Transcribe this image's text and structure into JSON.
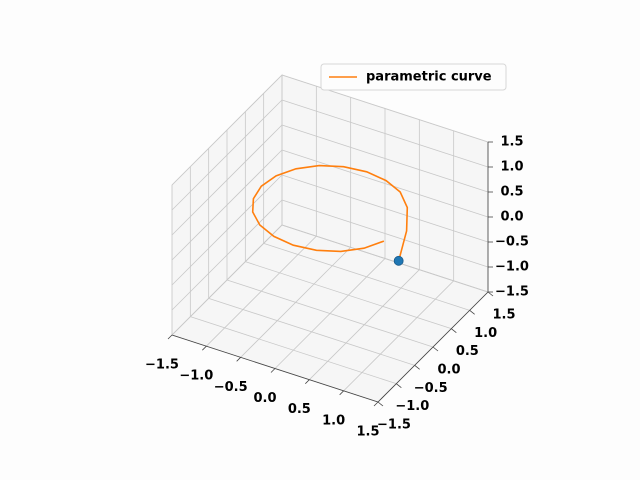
{
  "chart_data": {
    "type": "line3d",
    "series": [
      {
        "name": "parametric curve",
        "color": "#ff7f0e",
        "x": [
          1,
          0.95,
          0.81,
          0.59,
          0.31,
          0,
          -0.31,
          -0.59,
          -0.81,
          -0.95,
          -1,
          -0.95,
          -0.81,
          -0.59,
          -0.31,
          0,
          0.31,
          0.59,
          0.81,
          0.95
        ],
        "y": [
          0,
          0.31,
          0.59,
          0.81,
          0.95,
          1,
          0.95,
          0.81,
          0.59,
          0.31,
          0,
          -0.31,
          -0.59,
          -0.81,
          -0.95,
          -1,
          -0.95,
          -0.81,
          -0.59,
          -0.31
        ],
        "z": [
          0,
          0.35,
          0.55,
          0.6,
          0.6,
          0.6,
          0.6,
          0.6,
          0.6,
          0.6,
          0.6,
          0.6,
          0.6,
          0.6,
          0.6,
          0.6,
          0.6,
          0.6,
          0.6,
          0.6
        ]
      }
    ],
    "scatter": {
      "color": "#1f77b4",
      "x": [
        1
      ],
      "y": [
        0
      ],
      "z": [
        0
      ]
    },
    "xlim": [
      -1.5,
      1.5
    ],
    "ylim": [
      -1.5,
      1.5
    ],
    "zlim": [
      -1.5,
      1.5
    ],
    "xticks": [
      {
        "value": -1.5,
        "label": "−1.5"
      },
      {
        "value": -1,
        "label": "−1.0"
      },
      {
        "value": -0.5,
        "label": "−0.5"
      },
      {
        "value": 0,
        "label": "0.0"
      },
      0.5,
      {
        "value": 1,
        "label": "1.0"
      },
      1.5
    ],
    "yticks": [
      {
        "value": -1.5,
        "label": "−1.5"
      },
      {
        "value": -1,
        "label": "−1.0"
      },
      {
        "value": -0.5,
        "label": "−0.5"
      },
      {
        "value": 0,
        "label": "0.0"
      },
      0.5,
      {
        "value": 1,
        "label": "1.0"
      },
      1.5
    ],
    "zticks": [
      {
        "value": -1.5,
        "label": "−1.5"
      },
      {
        "value": -1,
        "label": "−1.0"
      },
      {
        "value": -0.5,
        "label": "−0.5"
      },
      {
        "value": 0,
        "label": "0.0"
      },
      0.5,
      {
        "value": 1,
        "label": "1.0"
      },
      1.5
    ],
    "grid": true,
    "legend": "upper right"
  }
}
